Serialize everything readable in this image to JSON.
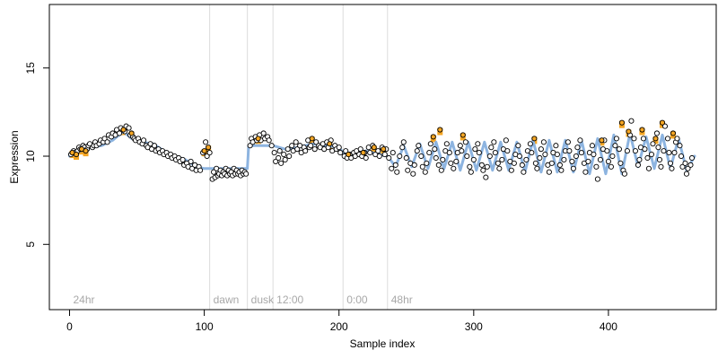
{
  "chart_data": {
    "type": "scatter",
    "title": "",
    "xlabel": "Sample index",
    "ylabel": "Expression",
    "xlim": [
      -15,
      480
    ],
    "ylim": [
      1.3,
      18.6
    ],
    "x_ticks": [
      0,
      100,
      200,
      300,
      400
    ],
    "y_ticks": [
      5,
      10,
      15
    ],
    "grid": false,
    "legend": "none",
    "segments": [
      {
        "label": "24hr",
        "x": 0
      },
      {
        "label": "dawn",
        "x": 104
      },
      {
        "label": "dusk",
        "x": 132
      },
      {
        "label": "12:00",
        "x": 151
      },
      {
        "label": "0:00",
        "x": 203
      },
      {
        "label": "48hr",
        "x": 236
      }
    ],
    "trend_color": "#8db4e0",
    "orange_color": "#f5a623",
    "point_stroke": "#000000",
    "orange_points": [
      [
        2,
        10.2
      ],
      [
        5,
        10.1
      ],
      [
        9,
        10.4
      ],
      [
        12,
        10.3
      ],
      [
        40,
        11.5
      ],
      [
        46,
        11.3
      ],
      [
        100,
        10.3
      ],
      [
        103,
        10.5
      ],
      [
        140,
        11.0
      ],
      [
        180,
        11.0
      ],
      [
        193,
        10.7
      ],
      [
        207,
        10.1
      ],
      [
        218,
        10.2
      ],
      [
        226,
        10.5
      ],
      [
        233,
        10.4
      ],
      [
        270,
        11.1
      ],
      [
        275,
        11.5
      ],
      [
        292,
        11.2
      ],
      [
        345,
        11.0
      ],
      [
        395,
        10.9
      ],
      [
        410,
        11.9
      ],
      [
        415,
        11.4
      ],
      [
        425,
        11.5
      ],
      [
        435,
        11.0
      ],
      [
        440,
        11.9
      ],
      [
        448,
        11.3
      ]
    ],
    "trend": [
      [
        0,
        10.0
      ],
      [
        8,
        10.3
      ],
      [
        16,
        10.5
      ],
      [
        24,
        10.6
      ],
      [
        32,
        10.9
      ],
      [
        40,
        11.4
      ],
      [
        46,
        11.0
      ],
      [
        54,
        10.8
      ],
      [
        62,
        10.7
      ],
      [
        70,
        10.3
      ],
      [
        78,
        10.0
      ],
      [
        86,
        9.8
      ],
      [
        94,
        9.4
      ],
      [
        100,
        9.3
      ],
      [
        104,
        9.3
      ],
      [
        105,
        9.3
      ],
      [
        132,
        9.3
      ],
      [
        133,
        10.6
      ],
      [
        150,
        10.6
      ],
      [
        151,
        10.6
      ],
      [
        160,
        10.4
      ],
      [
        170,
        10.5
      ],
      [
        180,
        10.7
      ],
      [
        190,
        10.6
      ],
      [
        200,
        10.5
      ],
      [
        203,
        10.2
      ],
      [
        210,
        10.1
      ],
      [
        220,
        10.3
      ],
      [
        230,
        10.1
      ],
      [
        236,
        10.0
      ],
      [
        242,
        9.4
      ],
      [
        248,
        10.6
      ],
      [
        254,
        9.4
      ],
      [
        260,
        10.7
      ],
      [
        266,
        9.3
      ],
      [
        272,
        10.8
      ],
      [
        278,
        9.3
      ],
      [
        284,
        10.8
      ],
      [
        290,
        9.2
      ],
      [
        296,
        10.8
      ],
      [
        302,
        9.2
      ],
      [
        308,
        10.8
      ],
      [
        314,
        9.2
      ],
      [
        320,
        10.8
      ],
      [
        326,
        9.2
      ],
      [
        332,
        10.8
      ],
      [
        338,
        9.1
      ],
      [
        344,
        10.9
      ],
      [
        350,
        9.1
      ],
      [
        356,
        10.9
      ],
      [
        362,
        9.1
      ],
      [
        368,
        10.9
      ],
      [
        374,
        9.1
      ],
      [
        380,
        10.9
      ],
      [
        386,
        9.0
      ],
      [
        392,
        11.0
      ],
      [
        398,
        9.0
      ],
      [
        404,
        11.2
      ],
      [
        410,
        9.0
      ],
      [
        416,
        11.3
      ],
      [
        422,
        9.4
      ],
      [
        428,
        11.1
      ],
      [
        434,
        9.3
      ],
      [
        440,
        11.2
      ],
      [
        446,
        9.3
      ],
      [
        452,
        11.0
      ],
      [
        458,
        9.2
      ],
      [
        464,
        10.0
      ]
    ],
    "points": [
      [
        1,
        10.1
      ],
      [
        3,
        10.3
      ],
      [
        4,
        10.2
      ],
      [
        6,
        10.3
      ],
      [
        7,
        10.5
      ],
      [
        8,
        10.4
      ],
      [
        10,
        10.6
      ],
      [
        11,
        10.5
      ],
      [
        13,
        10.4
      ],
      [
        14,
        10.6
      ],
      [
        15,
        10.7
      ],
      [
        17,
        10.5
      ],
      [
        18,
        10.6
      ],
      [
        19,
        10.8
      ],
      [
        20,
        10.6
      ],
      [
        22,
        10.7
      ],
      [
        23,
        10.9
      ],
      [
        25,
        10.8
      ],
      [
        26,
        11.0
      ],
      [
        28,
        10.8
      ],
      [
        29,
        11.2
      ],
      [
        31,
        11.1
      ],
      [
        32,
        11.3
      ],
      [
        34,
        11.2
      ],
      [
        35,
        11.5
      ],
      [
        37,
        11.3
      ],
      [
        38,
        11.6
      ],
      [
        41,
        11.4
      ],
      [
        42,
        11.7
      ],
      [
        44,
        11.6
      ],
      [
        45,
        11.2
      ],
      [
        47,
        11.1
      ],
      [
        48,
        11.0
      ],
      [
        49,
        10.9
      ],
      [
        51,
        11.0
      ],
      [
        52,
        10.8
      ],
      [
        54,
        10.7
      ],
      [
        55,
        10.9
      ],
      [
        57,
        10.6
      ],
      [
        58,
        10.5
      ],
      [
        60,
        10.7
      ],
      [
        61,
        10.4
      ],
      [
        63,
        10.6
      ],
      [
        64,
        10.3
      ],
      [
        66,
        10.4
      ],
      [
        67,
        10.2
      ],
      [
        69,
        10.3
      ],
      [
        70,
        10.1
      ],
      [
        72,
        10.2
      ],
      [
        73,
        10.0
      ],
      [
        75,
        10.1
      ],
      [
        76,
        9.9
      ],
      [
        78,
        10.0
      ],
      [
        79,
        9.8
      ],
      [
        81,
        9.9
      ],
      [
        82,
        9.7
      ],
      [
        84,
        9.8
      ],
      [
        85,
        9.5
      ],
      [
        87,
        9.6
      ],
      [
        88,
        9.4
      ],
      [
        90,
        9.7
      ],
      [
        91,
        9.3
      ],
      [
        93,
        9.5
      ],
      [
        94,
        9.2
      ],
      [
        96,
        9.4
      ],
      [
        97,
        9.2
      ],
      [
        99,
        10.2
      ],
      [
        101,
        10.8
      ],
      [
        102,
        10.0
      ],
      [
        104,
        10.2
      ],
      [
        106,
        8.7
      ],
      [
        107,
        9.1
      ],
      [
        108,
        8.8
      ],
      [
        109,
        9.3
      ],
      [
        110,
        8.9
      ],
      [
        111,
        9.0
      ],
      [
        112,
        9.2
      ],
      [
        113,
        8.9
      ],
      [
        114,
        9.1
      ],
      [
        115,
        9.0
      ],
      [
        116,
        9.3
      ],
      [
        117,
        8.9
      ],
      [
        118,
        9.2
      ],
      [
        119,
        9.0
      ],
      [
        120,
        9.1
      ],
      [
        121,
        8.9
      ],
      [
        122,
        9.3
      ],
      [
        123,
        9.0
      ],
      [
        124,
        9.2
      ],
      [
        125,
        9.0
      ],
      [
        126,
        9.1
      ],
      [
        127,
        8.9
      ],
      [
        128,
        9.2
      ],
      [
        129,
        9.0
      ],
      [
        130,
        9.1
      ],
      [
        131,
        9.0
      ],
      [
        134,
        10.6
      ],
      [
        135,
        11.0
      ],
      [
        136,
        10.8
      ],
      [
        138,
        11.1
      ],
      [
        139,
        10.9
      ],
      [
        141,
        11.2
      ],
      [
        142,
        10.9
      ],
      [
        144,
        11.3
      ],
      [
        145,
        11.0
      ],
      [
        147,
        11.1
      ],
      [
        148,
        10.9
      ],
      [
        150,
        10.6
      ],
      [
        152,
        10.2
      ],
      [
        153,
        9.7
      ],
      [
        155,
        9.9
      ],
      [
        156,
        10.3
      ],
      [
        157,
        9.6
      ],
      [
        159,
        10.1
      ],
      [
        160,
        9.8
      ],
      [
        162,
        10.4
      ],
      [
        163,
        10.0
      ],
      [
        165,
        10.6
      ],
      [
        166,
        10.3
      ],
      [
        168,
        10.8
      ],
      [
        169,
        10.4
      ],
      [
        171,
        10.6
      ],
      [
        172,
        10.2
      ],
      [
        174,
        10.5
      ],
      [
        175,
        10.3
      ],
      [
        177,
        10.9
      ],
      [
        178,
        10.5
      ],
      [
        179,
        10.6
      ],
      [
        182,
        10.4
      ],
      [
        183,
        10.8
      ],
      [
        185,
        10.6
      ],
      [
        186,
        10.5
      ],
      [
        188,
        10.7
      ],
      [
        189,
        10.4
      ],
      [
        191,
        10.8
      ],
      [
        192,
        10.5
      ],
      [
        194,
        10.9
      ],
      [
        195,
        10.3
      ],
      [
        197,
        10.6
      ],
      [
        198,
        10.4
      ],
      [
        200,
        10.5
      ],
      [
        201,
        10.2
      ],
      [
        204,
        10.0
      ],
      [
        205,
        10.3
      ],
      [
        206,
        9.9
      ],
      [
        208,
        10.1
      ],
      [
        209,
        9.9
      ],
      [
        211,
        10.2
      ],
      [
        212,
        10.0
      ],
      [
        213,
        10.3
      ],
      [
        215,
        10.1
      ],
      [
        216,
        10.4
      ],
      [
        217,
        10.0
      ],
      [
        219,
        10.2
      ],
      [
        220,
        9.9
      ],
      [
        222,
        10.5
      ],
      [
        223,
        10.2
      ],
      [
        225,
        10.6
      ],
      [
        227,
        10.1
      ],
      [
        229,
        10.3
      ],
      [
        230,
        10.0
      ],
      [
        232,
        10.5
      ],
      [
        234,
        10.1
      ],
      [
        235,
        10.4
      ],
      [
        237,
        9.9
      ],
      [
        239,
        9.3
      ],
      [
        240,
        10.2
      ],
      [
        242,
        9.5
      ],
      [
        243,
        9.1
      ],
      [
        245,
        10.0
      ],
      [
        247,
        10.5
      ],
      [
        248,
        10.8
      ],
      [
        250,
        9.9
      ],
      [
        251,
        9.2
      ],
      [
        253,
        9.6
      ],
      [
        255,
        9.0
      ],
      [
        256,
        9.5
      ],
      [
        258,
        10.3
      ],
      [
        259,
        10.6
      ],
      [
        261,
        10.0
      ],
      [
        262,
        9.4
      ],
      [
        264,
        9.1
      ],
      [
        265,
        9.6
      ],
      [
        267,
        10.2
      ],
      [
        268,
        10.7
      ],
      [
        271,
        10.4
      ],
      [
        272,
        9.9
      ],
      [
        274,
        9.5
      ],
      [
        276,
        9.2
      ],
      [
        277,
        9.8
      ],
      [
        279,
        10.3
      ],
      [
        280,
        10.7
      ],
      [
        282,
        10.2
      ],
      [
        283,
        9.6
      ],
      [
        285,
        9.3
      ],
      [
        287,
        9.7
      ],
      [
        288,
        10.2
      ],
      [
        290,
        10.6
      ],
      [
        291,
        10.3
      ],
      [
        294,
        10.8
      ],
      [
        295,
        10.0
      ],
      [
        297,
        9.4
      ],
      [
        298,
        9.1
      ],
      [
        300,
        9.8
      ],
      [
        301,
        10.4
      ],
      [
        303,
        10.7
      ],
      [
        304,
        10.2
      ],
      [
        306,
        9.5
      ],
      [
        307,
        9.2
      ],
      [
        309,
        8.8
      ],
      [
        310,
        9.4
      ],
      [
        312,
        10.0
      ],
      [
        313,
        10.5
      ],
      [
        315,
        10.8
      ],
      [
        316,
        10.2
      ],
      [
        318,
        9.6
      ],
      [
        319,
        9.3
      ],
      [
        321,
        9.8
      ],
      [
        322,
        10.4
      ],
      [
        324,
        10.9
      ],
      [
        325,
        10.3
      ],
      [
        327,
        9.7
      ],
      [
        328,
        9.2
      ],
      [
        330,
        9.6
      ],
      [
        331,
        10.1
      ],
      [
        333,
        10.6
      ],
      [
        334,
        10.0
      ],
      [
        336,
        9.5
      ],
      [
        337,
        9.1
      ],
      [
        339,
        9.8
      ],
      [
        340,
        10.3
      ],
      [
        342,
        10.7
      ],
      [
        343,
        10.2
      ],
      [
        346,
        9.6
      ],
      [
        347,
        9.3
      ],
      [
        349,
        9.9
      ],
      [
        350,
        10.4
      ],
      [
        352,
        10.8
      ],
      [
        353,
        10.1
      ],
      [
        355,
        9.5
      ],
      [
        356,
        9.1
      ],
      [
        358,
        9.6
      ],
      [
        359,
        10.2
      ],
      [
        361,
        10.6
      ],
      [
        362,
        10.1
      ],
      [
        364,
        9.5
      ],
      [
        365,
        9.2
      ],
      [
        367,
        9.8
      ],
      [
        368,
        10.3
      ],
      [
        370,
        10.8
      ],
      [
        371,
        10.3
      ],
      [
        373,
        9.7
      ],
      [
        374,
        9.3
      ],
      [
        376,
        10.0
      ],
      [
        377,
        10.5
      ],
      [
        379,
        10.9
      ],
      [
        380,
        10.2
      ],
      [
        382,
        9.6
      ],
      [
        383,
        9.1
      ],
      [
        385,
        9.7
      ],
      [
        386,
        10.2
      ],
      [
        388,
        10.6
      ],
      [
        389,
        10.1
      ],
      [
        391,
        9.4
      ],
      [
        392,
        8.7
      ],
      [
        394,
        9.8
      ],
      [
        396,
        10.4
      ],
      [
        397,
        10.9
      ],
      [
        399,
        10.3
      ],
      [
        400,
        9.7
      ],
      [
        402,
        9.4
      ],
      [
        403,
        10.0
      ],
      [
        405,
        10.6
      ],
      [
        406,
        11.0
      ],
      [
        408,
        10.4
      ],
      [
        409,
        9.6
      ],
      [
        411,
        9.2
      ],
      [
        412,
        9.0
      ],
      [
        414,
        10.3
      ],
      [
        416,
        11.2
      ],
      [
        417,
        12.0
      ],
      [
        419,
        11.0
      ],
      [
        420,
        10.3
      ],
      [
        422,
        9.5
      ],
      [
        423,
        9.8
      ],
      [
        424,
        10.5
      ],
      [
        426,
        11.0
      ],
      [
        427,
        10.4
      ],
      [
        429,
        9.9
      ],
      [
        430,
        9.3
      ],
      [
        432,
        10.1
      ],
      [
        433,
        10.7
      ],
      [
        436,
        11.3
      ],
      [
        437,
        10.5
      ],
      [
        438,
        9.8
      ],
      [
        439,
        9.4
      ],
      [
        441,
        10.3
      ],
      [
        442,
        11.7
      ],
      [
        444,
        11.0
      ],
      [
        445,
        10.2
      ],
      [
        446,
        9.6
      ],
      [
        447,
        9.3
      ],
      [
        449,
        10.2
      ],
      [
        450,
        10.8
      ],
      [
        451,
        11.0
      ],
      [
        453,
        10.6
      ],
      [
        454,
        10.0
      ],
      [
        455,
        9.4
      ],
      [
        457,
        9.6
      ],
      [
        458,
        9.0
      ],
      [
        459,
        9.3
      ],
      [
        461,
        9.5
      ],
      [
        462,
        9.9
      ]
    ]
  }
}
